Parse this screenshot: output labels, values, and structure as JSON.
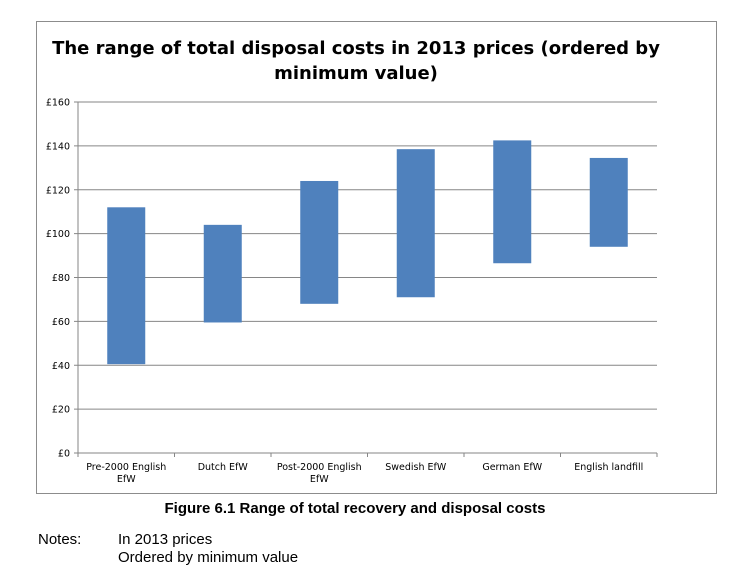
{
  "chart_data": {
    "type": "bar",
    "subtype": "floating-range",
    "title": "The range of total disposal costs in 2013 prices (ordered by minimum value)",
    "categories": [
      "Pre-2000 English EfW",
      "Dutch EfW",
      "Post-2000 English EfW",
      "Swedish EfW",
      "German EfW",
      "English landfill"
    ],
    "series": [
      {
        "values_min": [
          40.5,
          59.5,
          68,
          71,
          86.5,
          94
        ],
        "values_max": [
          112,
          104,
          124,
          138.5,
          142.5,
          134.5
        ]
      }
    ],
    "y_ticks": [
      "£0",
      "£20",
      "£40",
      "£60",
      "£80",
      "£100",
      "£120",
      "£140",
      "£160"
    ],
    "ylim": [
      0,
      160
    ],
    "grid": true,
    "legend": "none",
    "bar_color": "#4f81bd",
    "grid_color": "#868686"
  },
  "caption": "Figure 6.1 Range of total recovery and disposal costs",
  "notes": {
    "label": "Notes:",
    "lines": [
      "In 2013 prices",
      "Ordered by minimum value"
    ]
  }
}
